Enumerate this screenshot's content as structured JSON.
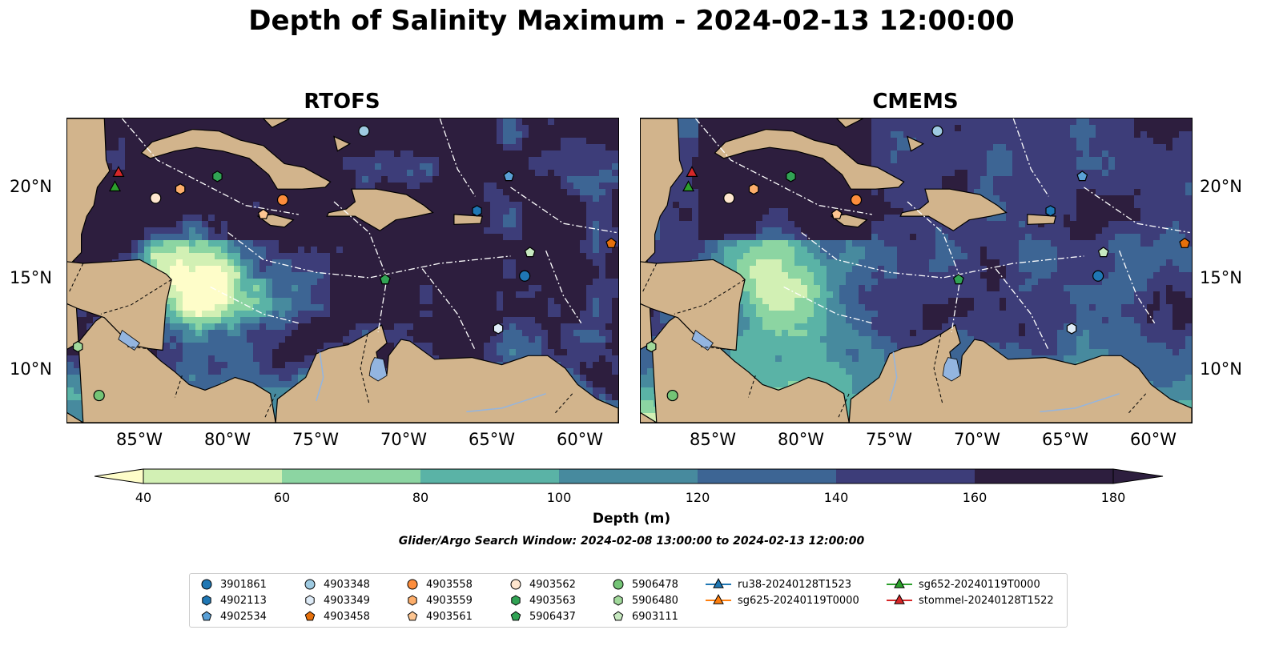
{
  "title": "Depth of Salinity Maximum - 2024-02-13 12:00:00",
  "panels": [
    {
      "title": "RTOFS",
      "palette": "rtofs"
    },
    {
      "title": "CMEMS",
      "palette": "cmems"
    }
  ],
  "x_ticks": [
    "85°W",
    "80°W",
    "75°W",
    "70°W",
    "65°W",
    "60°W"
  ],
  "y_ticks": [
    "20°N",
    "15°N",
    "10°N"
  ],
  "colorbar": {
    "label": "Depth (m)",
    "ticks": [
      "40",
      "60",
      "80",
      "100",
      "120",
      "140",
      "160",
      "180"
    ],
    "colors": [
      "#fefdc9",
      "#d2f0b4",
      "#8cd5a2",
      "#5ab3a6",
      "#478a9e",
      "#3d6594",
      "#3d3d79",
      "#2d1e3e"
    ]
  },
  "land_color": "#d2b48c",
  "search_window": "Glider/Argo Search Window: 2024-02-08 13:00:00 to 2024-02-13 12:00:00",
  "legend": [
    {
      "label": "3901861",
      "marker": "circle",
      "color": "#1f77b4"
    },
    {
      "label": "4902113",
      "marker": "hexagon",
      "color": "#1f77b4"
    },
    {
      "label": "4902534",
      "marker": "pentagon",
      "color": "#5aa0d6"
    },
    {
      "label": "4903348",
      "marker": "circle",
      "color": "#9ecae1"
    },
    {
      "label": "4903349",
      "marker": "hexagon",
      "color": "#deebf7"
    },
    {
      "label": "4903458",
      "marker": "pentagon",
      "color": "#e6700b"
    },
    {
      "label": "4903558",
      "marker": "circle",
      "color": "#fd8d3c"
    },
    {
      "label": "4903559",
      "marker": "hexagon",
      "color": "#fdae6b"
    },
    {
      "label": "4903561",
      "marker": "pentagon",
      "color": "#fdc591"
    },
    {
      "label": "4903562",
      "marker": "circle",
      "color": "#fee6ce"
    },
    {
      "label": "4903563",
      "marker": "hexagon",
      "color": "#31a354"
    },
    {
      "label": "5906437",
      "marker": "pentagon",
      "color": "#31a354"
    },
    {
      "label": "5906478",
      "marker": "circle",
      "color": "#74c476"
    },
    {
      "label": "5906480",
      "marker": "hexagon",
      "color": "#a1d99b"
    },
    {
      "label": "6903111",
      "marker": "pentagon",
      "color": "#c7e9c0"
    },
    {
      "label": "ru38-20240128T1523",
      "marker": "triangle-line",
      "color": "#1f77b4"
    },
    {
      "label": "sg625-20240119T0000",
      "marker": "triangle-line",
      "color": "#ff7f0e"
    },
    {
      "label": "sg652-20240119T0000",
      "marker": "triangle-line",
      "color": "#2ca02c"
    },
    {
      "label": "stommel-20240128T1522",
      "marker": "triangle-line",
      "color": "#d62728"
    }
  ],
  "observations": [
    {
      "id": "4903348",
      "lon": -72.3,
      "lat": 23.1,
      "marker": "circle",
      "color": "#9ecae1"
    },
    {
      "id": "4902534",
      "lon": -64.1,
      "lat": 20.6,
      "marker": "pentagon",
      "color": "#5aa0d6"
    },
    {
      "id": "4902113",
      "lon": -65.9,
      "lat": 18.7,
      "marker": "hexagon",
      "color": "#1f77b4"
    },
    {
      "id": "4903458",
      "lon": -58.3,
      "lat": 16.9,
      "marker": "pentagon",
      "color": "#e6700b"
    },
    {
      "id": "3901861",
      "lon": -63.2,
      "lat": 15.1,
      "marker": "circle",
      "color": "#1f77b4"
    },
    {
      "id": "6903111",
      "lon": -62.9,
      "lat": 16.4,
      "marker": "pentagon",
      "color": "#c7e9c0"
    },
    {
      "id": "5906437",
      "lon": -71.1,
      "lat": 14.9,
      "marker": "pentagon",
      "color": "#31a354"
    },
    {
      "id": "4903349",
      "lon": -64.7,
      "lat": 12.2,
      "marker": "hexagon",
      "color": "#deebf7"
    },
    {
      "id": "4903558",
      "lon": -76.9,
      "lat": 19.3,
      "marker": "circle",
      "color": "#fd8d3c"
    },
    {
      "id": "4903559",
      "lon": -82.7,
      "lat": 19.9,
      "marker": "hexagon",
      "color": "#fdae6b"
    },
    {
      "id": "4903561",
      "lon": -78.0,
      "lat": 18.5,
      "marker": "pentagon",
      "color": "#fdc591"
    },
    {
      "id": "4903562",
      "lon": -84.1,
      "lat": 19.4,
      "marker": "circle",
      "color": "#fee6ce"
    },
    {
      "id": "4903563",
      "lon": -80.6,
      "lat": 20.6,
      "marker": "hexagon",
      "color": "#31a354"
    },
    {
      "id": "5906478",
      "lon": -87.3,
      "lat": 8.5,
      "marker": "circle",
      "color": "#74c476"
    },
    {
      "id": "5906480",
      "lon": -88.5,
      "lat": 11.2,
      "marker": "hexagon",
      "color": "#a1d99b"
    },
    {
      "id": "sg652-20240119T0000",
      "lon": -86.4,
      "lat": 20.0,
      "marker": "triangle",
      "color": "#2ca02c"
    },
    {
      "id": "stommel-20240128T1522",
      "lon": -86.2,
      "lat": 20.8,
      "marker": "triangle",
      "color": "#d62728"
    }
  ]
}
